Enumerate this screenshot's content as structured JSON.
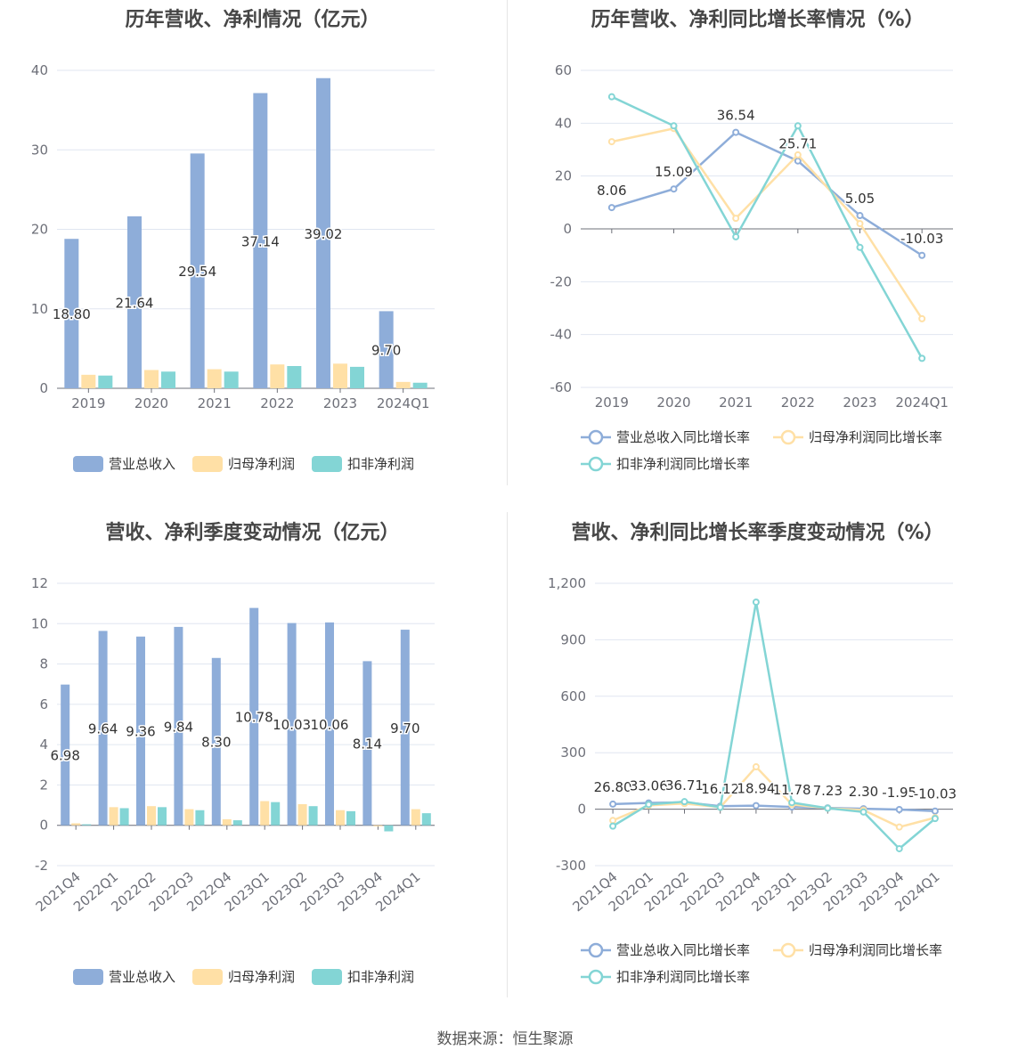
{
  "source": "数据来源：恒生聚源",
  "colors": {
    "revenue": "#8eadd9",
    "net_profit": "#ffe0a6",
    "deducted_profit": "#83d5d5",
    "grid": "#e0e6f1",
    "axis": "#6e7079"
  },
  "chart_data": [
    {
      "type": "bar",
      "title": "历年营收、净利情况（亿元）",
      "categories": [
        "2019",
        "2020",
        "2021",
        "2022",
        "2023",
        "2024Q1"
      ],
      "ylim": [
        0,
        40
      ],
      "yticks": [
        "0",
        "10",
        "20",
        "30",
        "40"
      ],
      "series": [
        {
          "name": "营业总收入",
          "values": [
            18.8,
            21.64,
            29.54,
            37.14,
            39.02,
            9.7
          ],
          "labels": [
            "18.80",
            "21.64",
            "29.54",
            "37.14",
            "39.02",
            "9.70"
          ]
        },
        {
          "name": "归母净利润",
          "values": [
            1.7,
            2.3,
            2.4,
            3.0,
            3.1,
            0.8
          ]
        },
        {
          "name": "扣非净利润",
          "values": [
            1.6,
            2.1,
            2.1,
            2.8,
            2.7,
            0.7
          ]
        }
      ],
      "legend": "bottom",
      "grid": true
    },
    {
      "type": "line",
      "title": "历年营收、净利同比增长率情况（%）",
      "categories": [
        "2019",
        "2020",
        "2021",
        "2022",
        "2023",
        "2024Q1"
      ],
      "ylim": [
        -60,
        60
      ],
      "yticks": [
        "-60",
        "-40",
        "-20",
        "0",
        "20",
        "40",
        "60"
      ],
      "series": [
        {
          "name": "营业总收入同比增长率",
          "values": [
            8.06,
            15.09,
            36.54,
            25.71,
            5.05,
            -10.03
          ],
          "labels": [
            "8.06",
            "15.09",
            "36.54",
            "25.71",
            "5.05",
            "-10.03"
          ]
        },
        {
          "name": "归母净利润同比增长率",
          "values": [
            33,
            38,
            4,
            28,
            2,
            -34
          ]
        },
        {
          "name": "扣非净利润同比增长率",
          "values": [
            50,
            39,
            -3,
            39,
            -7,
            -49
          ]
        }
      ],
      "legend": "bottom",
      "grid": true
    },
    {
      "type": "bar",
      "title": "营收、净利季度变动情况（亿元）",
      "categories": [
        "2021Q4",
        "2022Q1",
        "2022Q2",
        "2022Q3",
        "2022Q4",
        "2023Q1",
        "2023Q2",
        "2023Q3",
        "2023Q4",
        "2024Q1"
      ],
      "ylim": [
        -2,
        12
      ],
      "yticks": [
        "-2",
        "0",
        "2",
        "4",
        "6",
        "8",
        "10",
        "12"
      ],
      "series": [
        {
          "name": "营业总收入",
          "values": [
            6.98,
            9.64,
            9.36,
            9.84,
            8.3,
            10.78,
            10.03,
            10.06,
            8.14,
            9.7
          ],
          "labels": [
            "6.98",
            "9.64",
            "9.36",
            "9.84",
            "8.30",
            "10.78",
            "10.03",
            "10.06",
            "8.14",
            "9.70"
          ]
        },
        {
          "name": "归母净利润",
          "values": [
            0.1,
            0.9,
            0.95,
            0.8,
            0.3,
            1.2,
            1.05,
            0.75,
            -0.05,
            0.8
          ]
        },
        {
          "name": "扣非净利润",
          "values": [
            0.05,
            0.85,
            0.9,
            0.75,
            0.25,
            1.15,
            0.95,
            0.7,
            -0.3,
            0.6
          ]
        }
      ],
      "legend": "bottom",
      "grid": true
    },
    {
      "type": "line",
      "title": "营收、净利同比增长率季度变动情况（%）",
      "categories": [
        "2021Q4",
        "2022Q1",
        "2022Q2",
        "2022Q3",
        "2022Q4",
        "2023Q1",
        "2023Q2",
        "2023Q3",
        "2023Q4",
        "2024Q1"
      ],
      "ylim": [
        -300,
        1200
      ],
      "yticks": [
        "-300",
        "0",
        "300",
        "600",
        "900",
        "1,200"
      ],
      "series": [
        {
          "name": "营业总收入同比增长率",
          "values": [
            26.8,
            33.06,
            36.71,
            16.12,
            18.94,
            11.78,
            7.23,
            2.3,
            -1.95,
            -10.03
          ],
          "labels": [
            "26.80",
            "33.06",
            "36.71",
            "16.12",
            "18.94",
            "11.78",
            "7.23",
            "2.30",
            "-1.95",
            "-10.03"
          ]
        },
        {
          "name": "归母净利润同比增长率",
          "values": [
            -60,
            20,
            30,
            10,
            225,
            25,
            5,
            -5,
            -95,
            -45
          ]
        },
        {
          "name": "扣非净利润同比增长率",
          "values": [
            -90,
            25,
            40,
            10,
            1100,
            35,
            5,
            -15,
            -210,
            -50
          ]
        }
      ],
      "legend": "bottom",
      "grid": true
    }
  ]
}
